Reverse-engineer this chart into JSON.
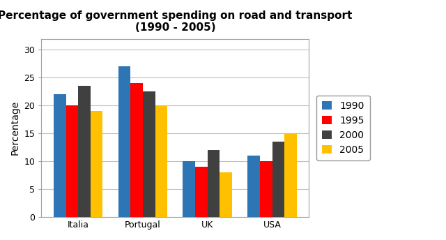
{
  "title": "Percentage of government spending on road and transport\n(1990 - 2005)",
  "ylabel": "Percentage",
  "categories": [
    "Italia",
    "Portugal",
    "UK",
    "USA"
  ],
  "years": [
    "1990",
    "1995",
    "2000",
    "2005"
  ],
  "values": {
    "1990": [
      22,
      27,
      10,
      11
    ],
    "1995": [
      20,
      24,
      9,
      10
    ],
    "2000": [
      23.5,
      22.5,
      12,
      13.5
    ],
    "2005": [
      19,
      20,
      8,
      15
    ]
  },
  "colors": {
    "1990": "#2E75B6",
    "1995": "#FF0000",
    "2000": "#404040",
    "2005": "#FFC000"
  },
  "ylim": [
    0,
    32
  ],
  "yticks": [
    0,
    5,
    10,
    15,
    20,
    25,
    30
  ],
  "bar_width": 0.19,
  "background_color": "#FFFFFF",
  "plot_bg_color": "#FFFFFF",
  "title_fontsize": 11,
  "axis_fontsize": 10,
  "tick_fontsize": 9,
  "legend_fontsize": 10,
  "grid_color": "#C0C0C0",
  "border_color": "#A0A0A0"
}
